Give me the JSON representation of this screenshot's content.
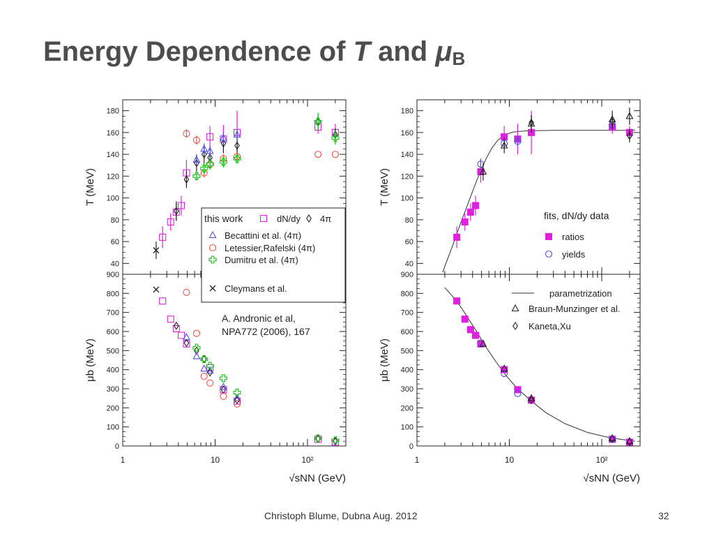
{
  "slide": {
    "title_main": "Energy Dependence of ",
    "title_T": "T",
    "title_and": " and ",
    "title_mu": "μ",
    "title_sub": "B",
    "footer_author": "Christoph Blume, Dubna Aug. 2012",
    "page_number": "32",
    "citation_line1": "A. Andronic et al,",
    "citation_line2": "NPA772 (2006), 167"
  },
  "colors": {
    "magenta": "#e020e0",
    "blue": "#5050e0",
    "red": "#f05040",
    "green": "#10c010",
    "black": "#222222"
  },
  "chart_data": [
    {
      "id": "left-T",
      "type": "scatter",
      "xscale": "log",
      "xlim": [
        1,
        260
      ],
      "ylim": [
        30,
        190
      ],
      "xlabel": "√sNN (GeV)",
      "ylabel": "T (MeV)",
      "yticks": [
        40,
        60,
        80,
        100,
        120,
        140,
        160,
        180
      ],
      "legend": {
        "this_work": "this work",
        "dndy": "dN/dy",
        "fourpi": "4π",
        "entries": [
          "Becattini et al. (4π)",
          "Letessier,Rafelski (4π)",
          "Dumitru et al. (4π)",
          "Cleymans et al."
        ]
      },
      "series": [
        {
          "name": "dN/dy",
          "marker": "square",
          "color": "magenta",
          "x": [
            2.7,
            3.3,
            3.8,
            4.3,
            4.9,
            8.8,
            12.3,
            17.3,
            130,
            200
          ],
          "y": [
            64,
            78,
            87,
            93,
            123,
            156,
            154,
            160,
            165,
            160
          ],
          "err": [
            10,
            8,
            8,
            9,
            12,
            10,
            13,
            20,
            6,
            8
          ]
        },
        {
          "name": "4π",
          "marker": "diamond",
          "color": "black",
          "x": [
            3.8,
            4.9,
            6.3,
            7.6,
            8.8,
            12.3,
            17.3,
            130,
            200
          ],
          "y": [
            88,
            117,
            132,
            140,
            137,
            150,
            148,
            170,
            158
          ],
          "err": [
            9,
            8,
            8,
            8,
            10,
            9,
            11,
            7,
            6
          ]
        },
        {
          "name": "Becattini et al. (4π)",
          "marker": "triangle",
          "color": "blue",
          "x": [
            6.3,
            7.6,
            8.8,
            12.3,
            17.3
          ],
          "y": [
            135,
            145,
            143,
            155,
            158
          ],
          "err": [
            5,
            5,
            5,
            5,
            5
          ]
        },
        {
          "name": "Letessier,Rafelski (4π)",
          "marker": "circle",
          "color": "red",
          "x": [
            4.9,
            6.3,
            7.6,
            8.8,
            12.3,
            17.3,
            130,
            200
          ],
          "y": [
            159,
            153,
            123,
            131,
            136,
            138,
            140,
            140
          ],
          "err": [
            4,
            4,
            4,
            4,
            4,
            4,
            0,
            0
          ]
        },
        {
          "name": "Dumitru et al. (4π)",
          "marker": "cross",
          "color": "green",
          "x": [
            6.3,
            7.6,
            8.8,
            12.3,
            17.3,
            130,
            200
          ],
          "y": [
            120,
            127,
            131,
            133,
            136,
            170,
            155
          ],
          "err": [
            4,
            5,
            5,
            5,
            5,
            8,
            6
          ]
        },
        {
          "name": "Cleymans et al.",
          "marker": "x",
          "color": "black",
          "x": [
            2.3
          ],
          "y": [
            52
          ],
          "err": [
            8
          ]
        }
      ]
    },
    {
      "id": "left-mu",
      "type": "scatter",
      "xscale": "log",
      "xlim": [
        1,
        260
      ],
      "ylim": [
        0,
        900
      ],
      "xlabel": "√sNN (GeV)",
      "ylabel": "μb (MeV)",
      "yticks": [
        0,
        100,
        200,
        300,
        400,
        500,
        600,
        700,
        800,
        900
      ],
      "xticks": [
        {
          "v": 1,
          "label": "1"
        },
        {
          "v": 10,
          "label": "10"
        },
        {
          "v": 100,
          "label": "10²"
        }
      ],
      "series": [
        {
          "name": "dN/dy",
          "marker": "square",
          "color": "magenta",
          "x": [
            2.7,
            3.3,
            3.8,
            4.3,
            4.9,
            8.8,
            12.3,
            17.3,
            130,
            200
          ],
          "y": [
            760,
            665,
            615,
            580,
            535,
            410,
            295,
            235,
            35,
            20
          ]
        },
        {
          "name": "4π",
          "marker": "diamond",
          "color": "black",
          "x": [
            3.8,
            4.9,
            6.3,
            7.6,
            8.8,
            12.3,
            17.3,
            130,
            200
          ],
          "y": [
            630,
            540,
            500,
            455,
            385,
            295,
            240,
            38,
            25
          ]
        },
        {
          "name": "Becattini et al. (4π)",
          "marker": "triangle",
          "color": "blue",
          "x": [
            4.9,
            6.3,
            7.6,
            8.8,
            12.3,
            17.3
          ],
          "y": [
            570,
            470,
            405,
            395,
            310,
            250
          ]
        },
        {
          "name": "Letessier,Rafelski (4π)",
          "marker": "circle",
          "color": "red",
          "x": [
            4.9,
            6.3,
            7.6,
            8.8,
            12.3,
            17.3
          ],
          "y": [
            805,
            590,
            365,
            330,
            260,
            220
          ]
        },
        {
          "name": "Dumitru et al. (4π)",
          "marker": "cross",
          "color": "green",
          "x": [
            6.3,
            7.6,
            8.8,
            12.3,
            17.3,
            130,
            200
          ],
          "y": [
            515,
            455,
            420,
            355,
            280,
            40,
            30
          ]
        },
        {
          "name": "Cleymans et al.",
          "marker": "x",
          "color": "black",
          "x": [
            2.3
          ],
          "y": [
            820
          ]
        }
      ]
    },
    {
      "id": "right-T",
      "type": "scatter",
      "xscale": "log",
      "xlim": [
        1,
        260
      ],
      "ylim": [
        30,
        190
      ],
      "xlabel": "√sNN (GeV)",
      "ylabel": "T (MeV)",
      "yticks": [
        40,
        60,
        80,
        100,
        120,
        140,
        160,
        180
      ],
      "legend": {
        "title": "fits, dN/dy data",
        "entries": [
          "ratios",
          "yields"
        ]
      },
      "series": [
        {
          "name": "ratios",
          "marker": "filled-square",
          "color": "magenta",
          "x": [
            2.7,
            3.3,
            3.8,
            4.3,
            4.9,
            8.8,
            12.3,
            17.3,
            130,
            200
          ],
          "y": [
            64,
            78,
            87,
            93,
            124,
            156,
            154,
            160,
            165,
            160
          ],
          "err": [
            10,
            8,
            8,
            9,
            10,
            10,
            14,
            20,
            6,
            6
          ]
        },
        {
          "name": "yields",
          "marker": "circle",
          "color": "blue",
          "x": [
            4.9,
            8.8,
            12.3,
            130
          ],
          "y": [
            131,
            150,
            152,
            167
          ],
          "err": [
            5,
            5,
            5,
            5
          ]
        },
        {
          "name": "Braun-Munzinger et al.",
          "marker": "triangle",
          "color": "black",
          "x": [
            5.2,
            8.8,
            17.3,
            130,
            200
          ],
          "y": [
            124,
            148,
            168,
            172,
            175
          ],
          "err": [
            8,
            7,
            8,
            8,
            8
          ]
        },
        {
          "name": "Kaneta,Xu",
          "marker": "diamond",
          "color": "black",
          "x": [
            17.3,
            130,
            200
          ],
          "y": [
            169,
            170,
            157
          ],
          "err": [
            7,
            7,
            6
          ]
        }
      ],
      "curve": {
        "name": "parametrization",
        "x": [
          1.9,
          2.1,
          2.4,
          2.7,
          3.0,
          3.4,
          3.8,
          4.3,
          4.9,
          5.6,
          6.5,
          7.5,
          9.0,
          11,
          15,
          30,
          100,
          230
        ],
        "y": [
          32,
          42,
          55,
          67,
          78,
          90,
          101,
          113,
          125,
          136,
          146,
          153,
          158,
          160.5,
          161.5,
          162,
          162,
          162
        ]
      }
    },
    {
      "id": "right-mu",
      "type": "scatter",
      "xscale": "log",
      "xlim": [
        1,
        260
      ],
      "ylim": [
        0,
        900
      ],
      "xlabel": "√sNN (GeV)",
      "ylabel": "μb (MeV)",
      "yticks": [
        0,
        100,
        200,
        300,
        400,
        500,
        600,
        700,
        800,
        900
      ],
      "xticks": [
        {
          "v": 1,
          "label": "1"
        },
        {
          "v": 10,
          "label": "10"
        },
        {
          "v": 100,
          "label": "10²"
        }
      ],
      "legend": {
        "entries": [
          "parametrization",
          "Braun-Munzinger et al.",
          "Kaneta,Xu"
        ]
      },
      "series": [
        {
          "name": "ratios",
          "marker": "filled-square",
          "color": "magenta",
          "x": [
            2.7,
            3.3,
            3.8,
            4.3,
            4.9,
            8.8,
            12.3,
            17.3,
            130,
            200
          ],
          "y": [
            760,
            665,
            610,
            580,
            535,
            400,
            295,
            240,
            35,
            20
          ]
        },
        {
          "name": "yields",
          "marker": "circle",
          "color": "blue",
          "x": [
            4.9,
            8.8,
            12.3,
            130
          ],
          "y": [
            540,
            380,
            275,
            35
          ]
        },
        {
          "name": "Braun-Munzinger et al.",
          "marker": "triangle",
          "color": "black",
          "x": [
            5.2,
            8.8,
            17.3,
            130,
            200
          ],
          "y": [
            535,
            405,
            250,
            40,
            25
          ]
        },
        {
          "name": "Kaneta,Xu",
          "marker": "diamond",
          "color": "black",
          "x": [
            17.3,
            130,
            200
          ],
          "y": [
            240,
            38,
            22
          ]
        }
      ],
      "curve": {
        "name": "parametrization",
        "x": [
          2.0,
          2.3,
          2.7,
          3.2,
          3.8,
          4.5,
          5.5,
          7,
          9,
          12,
          17,
          25,
          40,
          70,
          120,
          200,
          230
        ],
        "y": [
          830,
          798,
          758,
          707,
          650,
          594,
          523,
          448,
          375,
          305,
          238,
          174,
          117,
          71,
          44,
          28,
          25
        ]
      }
    }
  ]
}
